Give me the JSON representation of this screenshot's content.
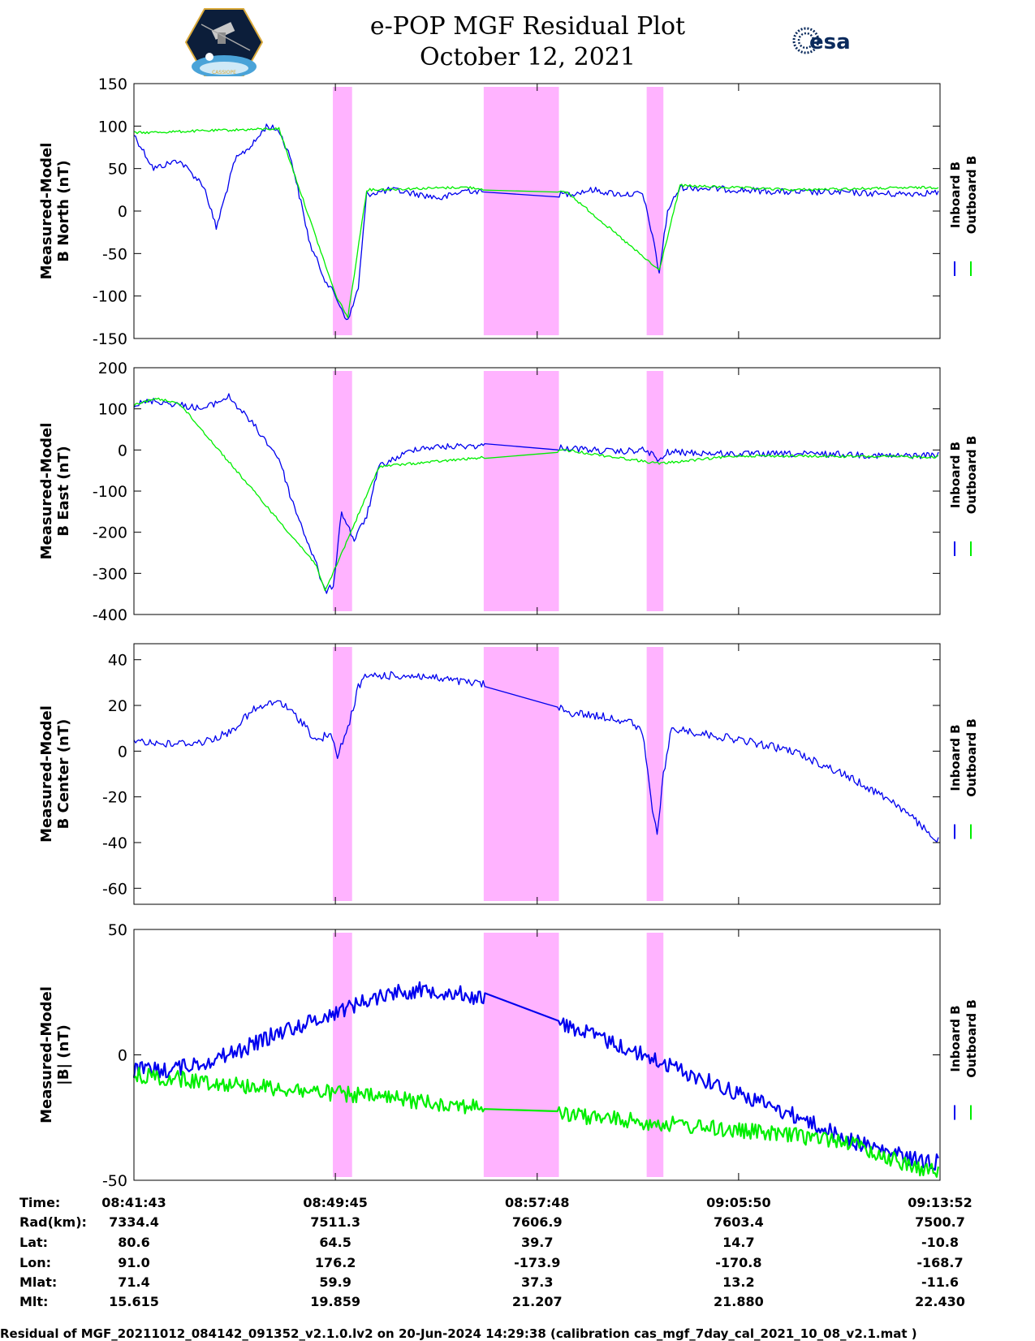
{
  "title_line1": "e-POP MGF Residual Plot",
  "title_line2": "October 12, 2021",
  "logos": {
    "left": "cassiope-mission-logo",
    "right": "esa-logo",
    "right_text": "esa"
  },
  "colors": {
    "inboard": "#0000ee",
    "outboard": "#00ee00",
    "shade": "#ffb3ff"
  },
  "chart_data": [
    {
      "type": "line",
      "ylabel": "Measured-Model",
      "ylabel2": "B North (nT)",
      "ylim": [
        -150,
        150
      ],
      "yticks": [
        "150",
        "100",
        "50",
        "0",
        "-50",
        "-100",
        "-150"
      ],
      "ytick_values": [
        150,
        100,
        50,
        0,
        -50,
        -100,
        -150
      ],
      "series": [
        {
          "name": "Inboard B",
          "color": "#0000ee",
          "x": [
            "08:41:43",
            "08:42:30",
            "08:43:30",
            "08:44:30",
            "08:45:00",
            "08:45:45",
            "08:46:30",
            "08:47:00",
            "08:47:30",
            "08:48:00",
            "08:48:45",
            "08:49:20",
            "08:49:45",
            "08:50:15",
            "08:50:40",
            "08:51:00",
            "08:52:00",
            "08:53:00",
            "08:54:00",
            "08:55:00",
            "08:56:00",
            "08:57:00",
            "08:59:00",
            "09:00:00",
            "09:01:00",
            "09:02:00",
            "09:02:20",
            "09:02:40",
            "09:03:00",
            "09:03:30",
            "09:05:50",
            "09:08:00",
            "09:10:00",
            "09:12:00",
            "09:13:52"
          ],
          "values": [
            90,
            50,
            60,
            30,
            -20,
            60,
            80,
            100,
            95,
            60,
            -40,
            -80,
            -100,
            -130,
            -90,
            20,
            25,
            20,
            15,
            25,
            20,
            20,
            20,
            25,
            20,
            20,
            -20,
            -73,
            0,
            28,
            25,
            22,
            22,
            20,
            22
          ]
        },
        {
          "name": "Outboard B",
          "color": "#00ee00",
          "x": [
            "08:41:43",
            "08:47:30",
            "08:49:45",
            "08:50:15",
            "08:51:00",
            "08:55:00",
            "08:57:00",
            "08:59:00",
            "09:02:40",
            "09:03:30",
            "09:08:00",
            "09:13:52"
          ],
          "values": [
            92,
            97,
            -98,
            -125,
            25,
            28,
            22,
            22,
            -70,
            30,
            25,
            28
          ]
        }
      ],
      "shaded_intervals": [
        [
          "08:49:39",
          "08:50:25"
        ],
        [
          "08:55:40",
          "08:58:40"
        ],
        [
          "09:02:10",
          "09:02:50"
        ]
      ]
    },
    {
      "type": "line",
      "ylabel": "Measured-Model",
      "ylabel2": "B East (nT)",
      "ylim": [
        -400,
        200
      ],
      "yticks": [
        "200",
        "100",
        "0",
        "-100",
        "-200",
        "-300",
        "-400"
      ],
      "ytick_values": [
        200,
        100,
        0,
        -100,
        -200,
        -300,
        -400
      ],
      "series": [
        {
          "name": "Inboard B",
          "color": "#0000ee",
          "x": [
            "08:41:43",
            "08:42:30",
            "08:43:30",
            "08:44:30",
            "08:45:30",
            "08:46:30",
            "08:47:30",
            "08:48:00",
            "08:48:30",
            "08:49:00",
            "08:49:20",
            "08:49:40",
            "08:50:00",
            "08:50:30",
            "08:51:00",
            "08:51:30",
            "08:53:00",
            "08:55:00",
            "08:57:00",
            "08:59:00",
            "09:01:00",
            "09:02:00",
            "09:02:25",
            "09:02:40",
            "09:03:00",
            "09:05:50",
            "09:08:00",
            "09:10:00",
            "09:12:00",
            "09:13:52"
          ],
          "values": [
            110,
            120,
            110,
            100,
            130,
            60,
            -20,
            -120,
            -200,
            -280,
            -345,
            -330,
            -150,
            -220,
            -160,
            -40,
            5,
            10,
            10,
            5,
            -5,
            0,
            -10,
            -30,
            -5,
            -10,
            -10,
            -10,
            -15,
            -12
          ]
        },
        {
          "name": "Outboard B",
          "color": "#00ee00",
          "x": [
            "08:41:43",
            "08:42:30",
            "08:43:30",
            "08:49:00",
            "08:49:20",
            "08:51:30",
            "08:59:00",
            "09:02:40",
            "09:05:50",
            "09:13:52"
          ],
          "values": [
            108,
            125,
            115,
            -280,
            -345,
            -40,
            -1,
            -33,
            -14,
            -17
          ]
        }
      ],
      "shaded_intervals": [
        [
          "08:49:39",
          "08:50:25"
        ],
        [
          "08:55:40",
          "08:58:40"
        ],
        [
          "09:02:10",
          "09:02:50"
        ]
      ]
    },
    {
      "type": "line",
      "ylabel": "Measured-Model",
      "ylabel2": "B Center (nT)",
      "ylim": [
        -67,
        47
      ],
      "yticks": [
        "40",
        "20",
        "0",
        "-20",
        "-40",
        "-60"
      ],
      "ytick_values": [
        40,
        20,
        0,
        -20,
        -40,
        -60
      ],
      "series": [
        {
          "name": "Inboard B",
          "color": "#0000ee",
          "x": [
            "08:41:43",
            "08:43:00",
            "08:44:30",
            "08:45:30",
            "08:46:30",
            "08:47:30",
            "08:48:30",
            "08:49:00",
            "08:49:30",
            "08:49:50",
            "08:50:15",
            "08:50:40",
            "08:51:00",
            "08:53:00",
            "08:55:00",
            "08:57:00",
            "08:59:00",
            "09:00:30",
            "09:01:30",
            "09:02:00",
            "09:02:20",
            "09:02:35",
            "09:02:50",
            "09:03:10",
            "09:05:50",
            "09:08:00",
            "09:10:00",
            "09:12:00",
            "09:13:52"
          ],
          "values": [
            5,
            3,
            4,
            8,
            18,
            22,
            12,
            4,
            8,
            -2,
            10,
            28,
            33,
            33,
            30,
            28,
            17,
            15,
            13,
            8,
            -20,
            -38,
            -10,
            10,
            5,
            0,
            -10,
            -22,
            -40
          ]
        }
      ],
      "shaded_intervals": [
        [
          "08:49:39",
          "08:50:25"
        ],
        [
          "08:55:40",
          "08:58:40"
        ],
        [
          "09:02:10",
          "09:02:50"
        ]
      ]
    },
    {
      "type": "line",
      "ylabel": "Measured-Model",
      "ylabel2": "|B| (nT)",
      "ylim": [
        -50,
        50
      ],
      "yticks": [
        "50",
        "0",
        "-50"
      ],
      "ytick_values": [
        50,
        0,
        -50
      ],
      "series": [
        {
          "name": "Inboard B",
          "color": "#0000ee",
          "x": [
            "08:41:43",
            "08:43:00",
            "08:44:30",
            "08:46:00",
            "08:47:30",
            "08:49:00",
            "08:50:30",
            "08:52:00",
            "08:53:30",
            "08:55:00",
            "08:56:30",
            "08:58:00",
            "08:59:30",
            "09:01:00",
            "09:02:30",
            "09:04:00",
            "09:05:30",
            "09:07:00",
            "09:08:30",
            "09:10:00",
            "09:11:30",
            "09:13:00",
            "09:13:52"
          ],
          "values": [
            -6,
            -6,
            -3,
            2,
            9,
            14,
            20,
            25,
            26,
            24,
            20,
            15,
            10,
            4,
            -2,
            -8,
            -14,
            -20,
            -26,
            -33,
            -38,
            -42,
            -43
          ]
        },
        {
          "name": "Outboard B",
          "color": "#00ee00",
          "x": [
            "08:41:43",
            "09:10:00",
            "09:11:30",
            "09:13:00",
            "09:13:52"
          ],
          "values": [
            -8,
            -34,
            -40,
            -45,
            -47
          ]
        }
      ],
      "shaded_intervals": [
        [
          "08:49:39",
          "08:50:25"
        ],
        [
          "08:55:40",
          "08:58:40"
        ],
        [
          "09:02:10",
          "09:02:50"
        ]
      ]
    }
  ],
  "legend": {
    "inboard": "Inboard B",
    "outboard": "Outboard B"
  },
  "orbit_table": {
    "row_labels": [
      "Time:",
      "Rad(km):",
      "Lat:",
      "Lon:",
      "Mlat:",
      "Mlt:"
    ],
    "columns": [
      [
        "08:41:43",
        "7334.4",
        "80.6",
        "91.0",
        "71.4",
        "15.615"
      ],
      [
        "08:49:45",
        "7511.3",
        "64.5",
        "176.2",
        "59.9",
        "19.859"
      ],
      [
        "08:57:48",
        "7606.9",
        "39.7",
        "-173.9",
        "37.3",
        "21.207"
      ],
      [
        "09:05:50",
        "7603.4",
        "14.7",
        "-170.8",
        "13.2",
        "21.880"
      ],
      [
        "09:13:52",
        "7500.7",
        "-10.8",
        "-168.7",
        "-11.6",
        "22.430"
      ]
    ]
  },
  "footer": "Residual of MGF_20211012_084142_091352_v2.1.0.lv2 on 20-Jun-2024 14:29:38 (calibration cas_mgf_7day_cal_2021_10_08_v2.1.mat )"
}
